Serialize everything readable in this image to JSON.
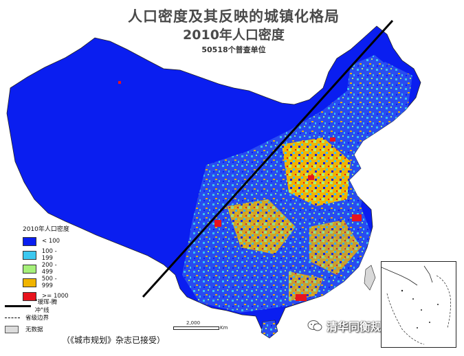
{
  "title": {
    "line1": "人口密度及其反映的城镇化格局",
    "line2": "2010年人口密度",
    "line3": "50518个普查单位"
  },
  "legend": {
    "title": "2010年人口密度",
    "classes": [
      {
        "label": "< 100",
        "color": "#0a1ef0"
      },
      {
        "label": "100 - 199",
        "color": "#3cc8f0"
      },
      {
        "label": "200 - 499",
        "color": "#a6f07a"
      },
      {
        "label": "500 - 999",
        "color": "#f0b400"
      },
      {
        "label": ">= 1000",
        "color": "#e8141e"
      }
    ],
    "line_label": "\"瑷珲-腾冲\"线",
    "boundary_label": "省级边界",
    "nodata_label": "无数据"
  },
  "scale_bar": {
    "value": "2,000",
    "unit": "Km"
  },
  "caption": "（《城市规划》杂志已接受）",
  "watermark": "清华同衡规划播报",
  "map_background": "#0a1ef0"
}
